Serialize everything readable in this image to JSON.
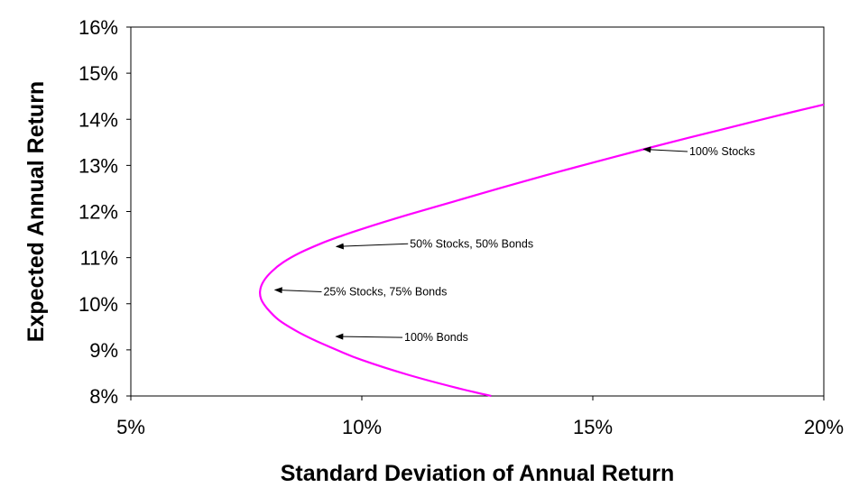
{
  "chart_data": {
    "type": "line",
    "title": "",
    "xlabel": "Standard Deviation of Annual Return",
    "ylabel": "Expected Annual Return",
    "xlim": [
      0.05,
      0.2
    ],
    "ylim": [
      0.08,
      0.16
    ],
    "x_ticks": [
      {
        "value": 0.05,
        "label": "5%"
      },
      {
        "value": 0.1,
        "label": "10%"
      },
      {
        "value": 0.15,
        "label": "15%"
      },
      {
        "value": 0.2,
        "label": "20%"
      }
    ],
    "y_ticks": [
      {
        "value": 0.08,
        "label": "8%"
      },
      {
        "value": 0.09,
        "label": "9%"
      },
      {
        "value": 0.1,
        "label": "10%"
      },
      {
        "value": 0.11,
        "label": "11%"
      },
      {
        "value": 0.12,
        "label": "12%"
      },
      {
        "value": 0.13,
        "label": "13%"
      },
      {
        "value": 0.14,
        "label": "14%"
      },
      {
        "value": 0.15,
        "label": "15%"
      },
      {
        "value": 0.16,
        "label": "16%"
      }
    ],
    "grid": false,
    "series": [
      {
        "color": "#ff00ff",
        "points": [
          {
            "x": 0.128,
            "y": 0.08
          },
          {
            "x": 0.12,
            "y": 0.0819
          },
          {
            "x": 0.11,
            "y": 0.0846
          },
          {
            "x": 0.1,
            "y": 0.0878
          },
          {
            "x": 0.095,
            "y": 0.0898
          },
          {
            "x": 0.09,
            "y": 0.092
          },
          {
            "x": 0.086,
            "y": 0.094
          },
          {
            "x": 0.082,
            "y": 0.0965
          },
          {
            "x": 0.0795,
            "y": 0.099
          },
          {
            "x": 0.0782,
            "y": 0.101
          },
          {
            "x": 0.078,
            "y": 0.103
          },
          {
            "x": 0.0788,
            "y": 0.105
          },
          {
            "x": 0.0805,
            "y": 0.107
          },
          {
            "x": 0.083,
            "y": 0.109
          },
          {
            "x": 0.0865,
            "y": 0.111
          },
          {
            "x": 0.091,
            "y": 0.113
          },
          {
            "x": 0.095,
            "y": 0.1145
          },
          {
            "x": 0.1,
            "y": 0.1162
          },
          {
            "x": 0.11,
            "y": 0.1193
          },
          {
            "x": 0.12,
            "y": 0.1222
          },
          {
            "x": 0.13,
            "y": 0.1251
          },
          {
            "x": 0.14,
            "y": 0.1279
          },
          {
            "x": 0.15,
            "y": 0.1306
          },
          {
            "x": 0.161,
            "y": 0.1335
          },
          {
            "x": 0.17,
            "y": 0.1358
          },
          {
            "x": 0.18,
            "y": 0.1383
          },
          {
            "x": 0.19,
            "y": 0.1408
          },
          {
            "x": 0.2,
            "y": 0.1432
          }
        ]
      }
    ],
    "annotations": [
      {
        "text": "100% Stocks",
        "point_x": 0.161,
        "point_y": 0.1335,
        "text_x": 0.1705,
        "text_y": 0.133
      },
      {
        "text": "50% Stocks, 50% Bonds",
        "point_x": 0.0945,
        "point_y": 0.1124,
        "text_x": 0.11,
        "text_y": 0.113
      },
      {
        "text": "25% Stocks, 75% Bonds",
        "point_x": 0.0812,
        "point_y": 0.103,
        "text_x": 0.0913,
        "text_y": 0.1026
      },
      {
        "text": "100% Bonds",
        "point_x": 0.0944,
        "point_y": 0.0929,
        "text_x": 0.1088,
        "text_y": 0.0927
      }
    ]
  }
}
